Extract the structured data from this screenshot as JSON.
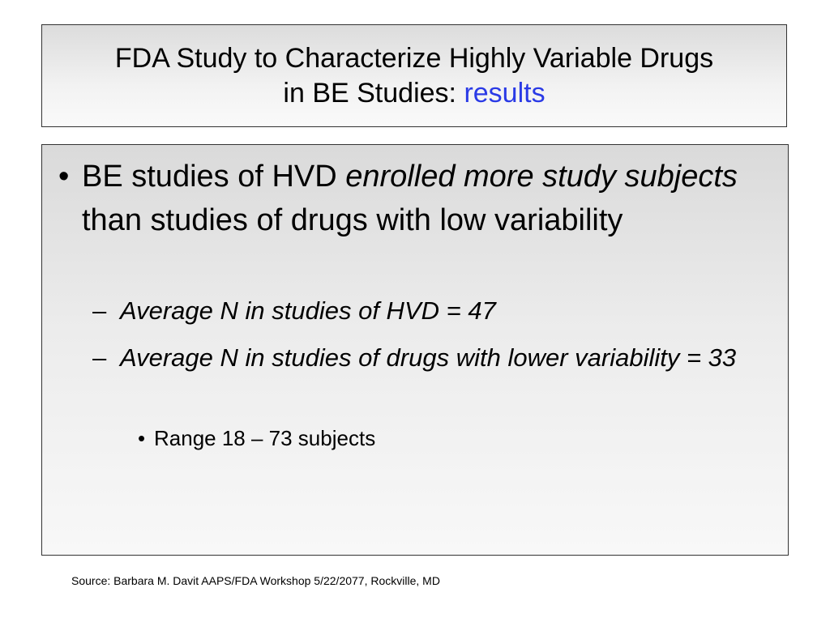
{
  "title": {
    "line1": "FDA Study to Characterize Highly Variable Drugs",
    "line2_prefix": "in BE Studies: ",
    "line2_accent": "results",
    "accent_color": "#2a3ae6"
  },
  "body": {
    "bullet1": {
      "marker": "•",
      "part1": "BE studies of HVD ",
      "emphasis": "enrolled more study subjects",
      "part2": " than studies of drugs with low variability"
    },
    "sub1": {
      "marker": "–",
      "text": "Average N in studies of HVD = 47"
    },
    "sub2": {
      "marker": "–",
      "text": "Average N in studies of drugs with lower variability = 33"
    },
    "subsub1": {
      "marker": "•",
      "text": "Range 18 – 73 subjects"
    }
  },
  "footer": {
    "source": "Source: Barbara M. Davit AAPS/FDA Workshop 5/22/2077, Rockville, MD"
  }
}
